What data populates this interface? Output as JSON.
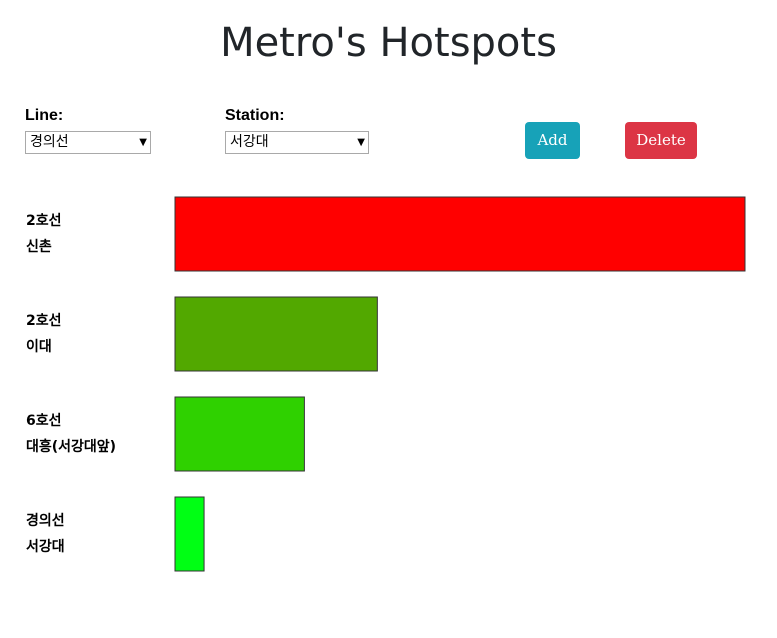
{
  "header": {
    "title": "Metro's Hotspots"
  },
  "controls": {
    "line_label": "Line:",
    "line_value": "경의선",
    "station_label": "Station:",
    "station_value": "서강대",
    "add_label": "Add",
    "delete_label": "Delete"
  },
  "chart_data": {
    "type": "bar",
    "orientation": "horizontal",
    "categories": [
      {
        "line": "2호선",
        "station": "신촌"
      },
      {
        "line": "2호선",
        "station": "이대"
      },
      {
        "line": "6호선",
        "station": "대흥(서강대앞)"
      },
      {
        "line": "경의선",
        "station": "서강대"
      }
    ],
    "values": [
      100,
      35.5,
      22.7,
      5.1
    ],
    "colors": [
      "#ff0000",
      "#52a800",
      "#2fd100",
      "#00ff14"
    ],
    "xlim": [
      0,
      100
    ]
  }
}
